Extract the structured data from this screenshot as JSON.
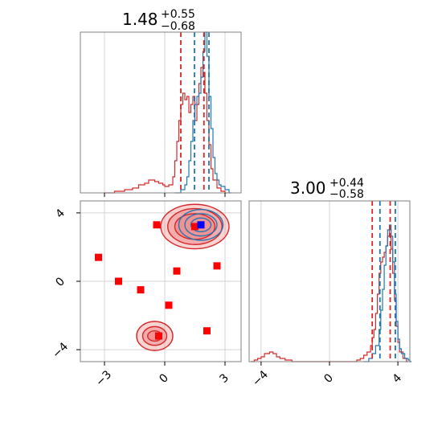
{
  "colors": {
    "red": "#d62728",
    "red_fill": "#f08080",
    "blue": "#1f77b4",
    "marker_red": "#ff0000",
    "marker_blue": "#0000ff",
    "grid": "#d3d3d3",
    "axes": "#808080"
  },
  "chart_data": [
    {
      "type": "histogram",
      "panel": "top-left",
      "title": {
        "main": "1.48",
        "sup": "+0.55",
        "sub": "−0.68"
      },
      "xlim": [
        -4.2,
        3.8
      ],
      "x_gridlines": [
        -3,
        0,
        3
      ],
      "ylim": [
        0,
        1.0
      ],
      "series": [
        {
          "color": "red",
          "bins": [
            [
              -3.0,
              0.0
            ],
            [
              -2.5,
              0.01
            ],
            [
              -2.0,
              0.02
            ],
            [
              -1.6,
              0.03
            ],
            [
              -1.3,
              0.05
            ],
            [
              -1.0,
              0.06
            ],
            [
              -0.8,
              0.08
            ],
            [
              -0.5,
              0.07
            ],
            [
              -0.3,
              0.06
            ],
            [
              -0.1,
              0.05
            ],
            [
              0.0,
              0.04
            ],
            [
              0.2,
              0.05
            ],
            [
              0.4,
              0.1
            ],
            [
              0.5,
              0.2
            ],
            [
              0.6,
              0.32
            ],
            [
              0.7,
              0.45
            ],
            [
              0.8,
              0.55
            ],
            [
              0.9,
              0.62
            ],
            [
              1.0,
              0.58
            ],
            [
              1.1,
              0.6
            ],
            [
              1.2,
              0.5
            ],
            [
              1.3,
              0.55
            ],
            [
              1.4,
              0.6
            ],
            [
              1.5,
              0.45
            ],
            [
              1.6,
              0.55
            ],
            [
              1.7,
              0.68
            ],
            [
              1.8,
              0.78
            ],
            [
              1.9,
              0.75
            ],
            [
              2.0,
              0.62
            ],
            [
              2.1,
              0.45
            ],
            [
              2.2,
              0.3
            ],
            [
              2.3,
              0.15
            ],
            [
              2.4,
              0.08
            ],
            [
              2.6,
              0.03
            ],
            [
              2.8,
              0.01
            ],
            [
              3.0,
              0.0
            ]
          ]
        },
        {
          "color": "blue",
          "bins": [
            [
              0.5,
              0.0
            ],
            [
              0.8,
              0.02
            ],
            [
              1.0,
              0.05
            ],
            [
              1.1,
              0.1
            ],
            [
              1.2,
              0.2
            ],
            [
              1.3,
              0.32
            ],
            [
              1.4,
              0.45
            ],
            [
              1.5,
              0.55
            ],
            [
              1.6,
              0.6
            ],
            [
              1.7,
              0.62
            ],
            [
              1.8,
              0.72
            ],
            [
              1.9,
              0.88
            ],
            [
              2.0,
              1.0
            ],
            [
              2.1,
              0.85
            ],
            [
              2.2,
              0.6
            ],
            [
              2.3,
              0.4
            ],
            [
              2.4,
              0.22
            ],
            [
              2.5,
              0.12
            ],
            [
              2.6,
              0.08
            ],
            [
              2.7,
              0.05
            ],
            [
              2.8,
              0.04
            ],
            [
              3.0,
              0.02
            ],
            [
              3.2,
              0.0
            ]
          ]
        }
      ],
      "quantile_lines": {
        "red": [
          0.8,
          1.95
        ],
        "blue": [
          1.48,
          2.2
        ]
      }
    },
    {
      "type": "scatter",
      "panel": "bottom-left",
      "xlim": [
        -4.2,
        3.8
      ],
      "ylim": [
        -4.7,
        4.7
      ],
      "x_ticks": [
        -3,
        0,
        3
      ],
      "y_ticks": [
        -4,
        0,
        4
      ],
      "x_gridlines": [
        -3,
        0,
        3
      ],
      "y_gridlines": [
        -4,
        0,
        4
      ],
      "contours": [
        {
          "color": "red",
          "fill": true,
          "cx": 1.5,
          "cy": 3.2,
          "rx": [
            1.7,
            1.35,
            1.0
          ],
          "ry": [
            1.3,
            1.05,
            0.75
          ]
        },
        {
          "color": "red",
          "fill": true,
          "cx": -0.5,
          "cy": -3.2,
          "rx": [
            0.9,
            0.6,
            0.35
          ],
          "ry": [
            0.85,
            0.55,
            0.3
          ]
        },
        {
          "color": "blue",
          "fill": false,
          "cx": 1.8,
          "cy": 3.3,
          "rx": [
            1.1,
            0.8,
            0.5
          ],
          "ry": [
            0.9,
            0.65,
            0.4
          ]
        }
      ],
      "points_red": [
        [
          -3.3,
          1.4
        ],
        [
          -2.3,
          0.0
        ],
        [
          -1.2,
          -0.5
        ],
        [
          -0.4,
          3.3
        ],
        [
          0.2,
          -1.4
        ],
        [
          0.6,
          0.6
        ],
        [
          1.5,
          3.2
        ],
        [
          2.1,
          -2.9
        ],
        [
          2.6,
          0.9
        ],
        [
          -0.3,
          -3.2
        ]
      ],
      "points_blue": [
        [
          1.8,
          3.3
        ]
      ]
    },
    {
      "type": "histogram",
      "panel": "bottom-right",
      "title": {
        "main": "3.00",
        "sup": "+0.44",
        "sub": "−0.58"
      },
      "xlim": [
        -4.7,
        4.7
      ],
      "x_ticks": [
        -4,
        0,
        4
      ],
      "x_gridlines": [
        -4,
        0,
        4
      ],
      "ylim": [
        0,
        1.0
      ],
      "series": [
        {
          "color": "red",
          "bins": [
            [
              -4.6,
              0.0
            ],
            [
              -4.4,
              0.01
            ],
            [
              -4.2,
              0.02
            ],
            [
              -4.0,
              0.03
            ],
            [
              -3.8,
              0.05
            ],
            [
              -3.5,
              0.06
            ],
            [
              -3.3,
              0.05
            ],
            [
              -3.1,
              0.03
            ],
            [
              -2.9,
              0.02
            ],
            [
              -2.6,
              0.01
            ],
            [
              -2.2,
              0.0
            ],
            [
              1.2,
              0.0
            ],
            [
              1.6,
              0.01
            ],
            [
              1.8,
              0.02
            ],
            [
              2.0,
              0.04
            ],
            [
              2.2,
              0.06
            ],
            [
              2.4,
              0.1
            ],
            [
              2.5,
              0.15
            ],
            [
              2.6,
              0.2
            ],
            [
              2.7,
              0.3
            ],
            [
              2.8,
              0.42
            ],
            [
              2.9,
              0.55
            ],
            [
              3.0,
              0.62
            ],
            [
              3.1,
              0.65
            ],
            [
              3.2,
              0.68
            ],
            [
              3.3,
              0.72
            ],
            [
              3.4,
              0.78
            ],
            [
              3.5,
              0.82
            ],
            [
              3.6,
              0.7
            ],
            [
              3.7,
              0.55
            ],
            [
              3.8,
              0.38
            ],
            [
              3.9,
              0.22
            ],
            [
              4.0,
              0.12
            ],
            [
              4.1,
              0.06
            ],
            [
              4.3,
              0.02
            ],
            [
              4.5,
              0.0
            ]
          ]
        },
        {
          "color": "blue",
          "bins": [
            [
              2.0,
              0.0
            ],
            [
              2.3,
              0.02
            ],
            [
              2.5,
              0.05
            ],
            [
              2.7,
              0.1
            ],
            [
              2.9,
              0.2
            ],
            [
              3.0,
              0.32
            ],
            [
              3.1,
              0.45
            ],
            [
              3.2,
              0.6
            ],
            [
              3.3,
              0.72
            ],
            [
              3.4,
              0.82
            ],
            [
              3.5,
              0.85
            ],
            [
              3.6,
              0.78
            ],
            [
              3.7,
              0.62
            ],
            [
              3.8,
              0.42
            ],
            [
              3.9,
              0.25
            ],
            [
              4.0,
              0.14
            ],
            [
              4.1,
              0.08
            ],
            [
              4.2,
              0.05
            ],
            [
              4.4,
              0.02
            ],
            [
              4.6,
              0.01
            ],
            [
              4.7,
              0.0
            ]
          ]
        }
      ],
      "quantile_lines": {
        "red": [
          2.5,
          3.55
        ],
        "blue": [
          2.95,
          3.85
        ]
      }
    }
  ]
}
